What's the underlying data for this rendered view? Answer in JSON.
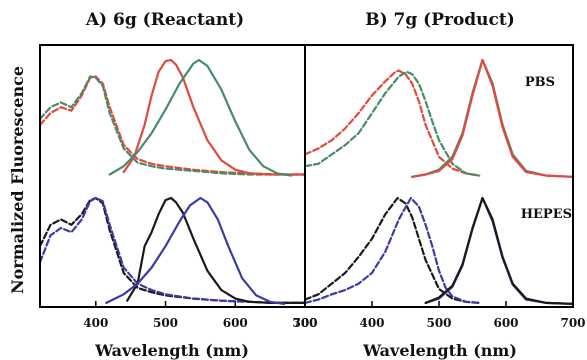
{
  "chart_data": [
    {
      "type": "line",
      "title": "A) 6g (Reactant)",
      "xlabel": "Wavelength (nm)",
      "ylabel": "Normalized Fluorescence",
      "xlim": [
        320,
        700
      ],
      "xticks": [
        400,
        500,
        600,
        700
      ],
      "panels": [
        {
          "label": "",
          "series": [
            {
              "kind": "excitation",
              "color": "#e04a3f",
              "dash": true,
              "x": [
                320,
                335,
                350,
                365,
                380,
                392,
                400,
                410,
                420,
                440,
                460,
                480,
                500,
                540,
                580,
                620,
                660,
                700
              ],
              "y": [
                0.45,
                0.55,
                0.6,
                0.57,
                0.7,
                0.85,
                0.86,
                0.8,
                0.6,
                0.28,
                0.16,
                0.12,
                0.1,
                0.07,
                0.05,
                0.04,
                0.03,
                0.03
              ]
            },
            {
              "kind": "excitation",
              "color": "#4a8a6a",
              "dash": true,
              "x": [
                320,
                335,
                350,
                365,
                380,
                392,
                400,
                410,
                420,
                440,
                460,
                480,
                500,
                540,
                580,
                620,
                660,
                700
              ],
              "y": [
                0.5,
                0.6,
                0.64,
                0.6,
                0.72,
                0.86,
                0.85,
                0.78,
                0.55,
                0.25,
                0.13,
                0.1,
                0.08,
                0.06,
                0.04,
                0.03,
                0.03,
                0.03
              ]
            },
            {
              "kind": "emission",
              "color": "#e04a3f",
              "dash": false,
              "x": [
                440,
                455,
                470,
                480,
                490,
                500,
                508,
                515,
                525,
                540,
                560,
                580,
                600,
                620,
                650,
                680,
                700
              ],
              "y": [
                0.05,
                0.18,
                0.45,
                0.7,
                0.9,
                0.99,
                1.0,
                0.96,
                0.85,
                0.6,
                0.32,
                0.15,
                0.07,
                0.04,
                0.03,
                0.03,
                0.03
              ]
            },
            {
              "kind": "emission",
              "color": "#4a8a6a",
              "dash": false,
              "x": [
                420,
                440,
                460,
                480,
                500,
                520,
                540,
                548,
                560,
                580,
                600,
                620,
                640,
                660,
                680
              ],
              "y": [
                0.03,
                0.1,
                0.22,
                0.38,
                0.58,
                0.8,
                0.97,
                1.0,
                0.95,
                0.75,
                0.48,
                0.24,
                0.1,
                0.04,
                0.02
              ]
            }
          ]
        },
        {
          "label": "",
          "series": [
            {
              "kind": "excitation",
              "color": "#1a1a1a",
              "dash": true,
              "x": [
                320,
                335,
                350,
                365,
                380,
                392,
                400,
                410,
                420,
                440,
                460,
                480,
                500,
                540,
                580,
                620,
                660,
                700
              ],
              "y": [
                0.55,
                0.75,
                0.8,
                0.75,
                0.85,
                0.98,
                1.0,
                0.95,
                0.7,
                0.3,
                0.16,
                0.12,
                0.09,
                0.06,
                0.04,
                0.03,
                0.02,
                0.02
              ]
            },
            {
              "kind": "excitation",
              "color": "#3b3ba8",
              "dash": true,
              "x": [
                320,
                335,
                350,
                365,
                380,
                392,
                400,
                410,
                420,
                440,
                460,
                480,
                500,
                540,
                580,
                620,
                660,
                700
              ],
              "y": [
                0.4,
                0.65,
                0.72,
                0.68,
                0.8,
                0.97,
                1.0,
                0.97,
                0.75,
                0.35,
                0.2,
                0.14,
                0.1,
                0.06,
                0.04,
                0.03,
                0.02,
                0.02
              ]
            },
            {
              "kind": "emission",
              "color": "#1a1a1a",
              "dash": false,
              "x": [
                445,
                460,
                470,
                480,
                490,
                500,
                508,
                515,
                525,
                540,
                560,
                580,
                600,
                620,
                650,
                680,
                700
              ],
              "y": [
                0.04,
                0.2,
                0.55,
                0.68,
                0.85,
                0.98,
                1.0,
                0.96,
                0.86,
                0.62,
                0.32,
                0.14,
                0.06,
                0.03,
                0.02,
                0.02,
                0.02
              ]
            },
            {
              "kind": "emission",
              "color": "#3b3ba8",
              "dash": false,
              "x": [
                415,
                440,
                460,
                480,
                500,
                520,
                535,
                550,
                560,
                575,
                590,
                610,
                630,
                650,
                670
              ],
              "y": [
                0.02,
                0.1,
                0.2,
                0.35,
                0.55,
                0.78,
                0.93,
                1.0,
                0.96,
                0.8,
                0.55,
                0.25,
                0.09,
                0.03,
                0.01
              ]
            }
          ]
        }
      ]
    },
    {
      "type": "line",
      "title": "B) 7g (Product)",
      "xlabel": "Wavelength (nm)",
      "ylabel": "",
      "xlim": [
        300,
        700
      ],
      "xticks": [
        300,
        400,
        500,
        600,
        700
      ],
      "panels": [
        {
          "label": "PBS",
          "series": [
            {
              "kind": "excitation",
              "color": "#e04a3f",
              "dash": true,
              "x": [
                300,
                320,
                340,
                360,
                380,
                400,
                420,
                435,
                440,
                450,
                460,
                470,
                480,
                500,
                520,
                540,
                560
              ],
              "y": [
                0.2,
                0.25,
                0.32,
                0.42,
                0.55,
                0.7,
                0.82,
                0.9,
                0.91,
                0.88,
                0.8,
                0.65,
                0.45,
                0.18,
                0.08,
                0.04,
                0.02
              ]
            },
            {
              "kind": "excitation",
              "color": "#4a8a6a",
              "dash": true,
              "x": [
                300,
                320,
                340,
                360,
                380,
                400,
                420,
                440,
                452,
                460,
                470,
                480,
                490,
                500,
                520,
                540,
                560
              ],
              "y": [
                0.1,
                0.12,
                0.2,
                0.28,
                0.38,
                0.55,
                0.72,
                0.86,
                0.9,
                0.88,
                0.8,
                0.65,
                0.48,
                0.32,
                0.12,
                0.04,
                0.02
              ]
            },
            {
              "kind": "emission",
              "color": "#4a8a6a",
              "dash": false,
              "x": [
                460,
                480,
                500,
                520,
                535,
                550,
                565,
                580,
                595,
                610,
                630,
                660,
                700
              ],
              "y": [
                0.01,
                0.03,
                0.07,
                0.18,
                0.38,
                0.72,
                1.0,
                0.8,
                0.45,
                0.2,
                0.06,
                0.02,
                0.01
              ]
            },
            {
              "kind": "emission",
              "color": "#e04a3f",
              "dash": false,
              "x": [
                460,
                480,
                500,
                520,
                535,
                550,
                565,
                580,
                595,
                610,
                630,
                660,
                700
              ],
              "y": [
                0.01,
                0.03,
                0.06,
                0.16,
                0.36,
                0.7,
                1.0,
                0.78,
                0.43,
                0.18,
                0.05,
                0.02,
                0.01
              ]
            }
          ]
        },
        {
          "label": "HEPES",
          "series": [
            {
              "kind": "excitation",
              "color": "#1a1a1a",
              "dash": true,
              "x": [
                300,
                320,
                340,
                360,
                380,
                400,
                420,
                438,
                450,
                460,
                470,
                480,
                500,
                520,
                540,
                560
              ],
              "y": [
                0.05,
                0.1,
                0.2,
                0.3,
                0.45,
                0.62,
                0.85,
                1.0,
                0.95,
                0.82,
                0.62,
                0.42,
                0.15,
                0.06,
                0.03,
                0.02
              ]
            },
            {
              "kind": "excitation",
              "color": "#3b3ba8",
              "dash": true,
              "x": [
                300,
                320,
                340,
                360,
                380,
                400,
                420,
                440,
                458,
                470,
                480,
                490,
                500,
                510,
                520,
                540,
                560
              ],
              "y": [
                0.02,
                0.05,
                0.1,
                0.14,
                0.2,
                0.3,
                0.5,
                0.8,
                1.0,
                0.92,
                0.75,
                0.55,
                0.32,
                0.16,
                0.08,
                0.03,
                0.02
              ]
            },
            {
              "kind": "emission",
              "color": "#3b3ba8",
              "dash": false,
              "x": [
                480,
                500,
                520,
                535,
                550,
                565,
                580,
                595,
                610,
                630,
                660,
                700
              ],
              "y": [
                0.02,
                0.06,
                0.17,
                0.37,
                0.71,
                1.0,
                0.78,
                0.44,
                0.19,
                0.05,
                0.02,
                0.01
              ]
            },
            {
              "kind": "emission",
              "color": "#1a1a1a",
              "dash": false,
              "x": [
                480,
                500,
                520,
                535,
                550,
                565,
                580,
                595,
                610,
                630,
                660,
                700
              ],
              "y": [
                0.02,
                0.07,
                0.18,
                0.38,
                0.72,
                1.0,
                0.8,
                0.45,
                0.2,
                0.06,
                0.02,
                0.01
              ]
            }
          ]
        }
      ]
    }
  ]
}
